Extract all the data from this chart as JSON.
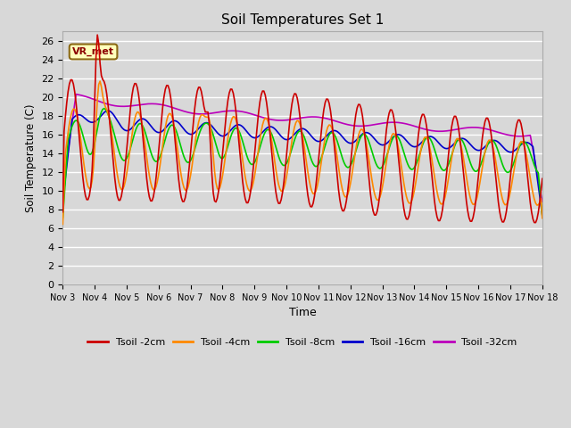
{
  "title": "Soil Temperatures Set 1",
  "xlabel": "Time",
  "ylabel": "Soil Temperature (C)",
  "ylim": [
    0,
    27
  ],
  "yticks": [
    0,
    2,
    4,
    6,
    8,
    10,
    12,
    14,
    16,
    18,
    20,
    22,
    24,
    26
  ],
  "bg_color": "#d8d8d8",
  "grid_color": "#ffffff",
  "annotation_text": "VR_met",
  "series_colors": {
    "t2": "#cc0000",
    "t4": "#ff8800",
    "t8": "#00cc00",
    "t16": "#0000cc",
    "t32": "#bb00bb"
  },
  "xtick_labels": [
    "Nov 3",
    "Nov 4",
    "Nov 5",
    "Nov 6",
    "Nov 7",
    "Nov 8",
    "Nov 9",
    "Nov 10",
    "Nov 11",
    "Nov 12",
    "Nov 13",
    "Nov 14",
    "Nov 15",
    "Nov 16",
    "Nov 17",
    "Nov 18"
  ],
  "legend_labels": [
    "Tsoil -2cm",
    "Tsoil -4cm",
    "Tsoil -8cm",
    "Tsoil -16cm",
    "Tsoil -32cm"
  ]
}
